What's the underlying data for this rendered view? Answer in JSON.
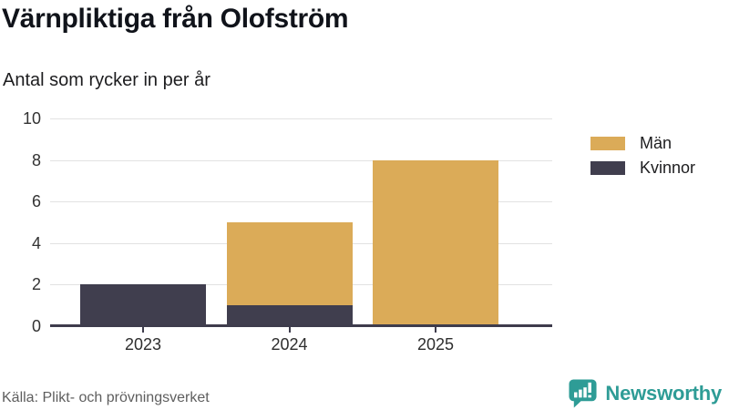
{
  "header": {
    "title": "Värnpliktiga från Olofström",
    "subtitle": "Antal som rycker in per år"
  },
  "chart_data": {
    "type": "bar",
    "stacked": true,
    "title": "Värnpliktiga från Olofström",
    "subtitle": "Antal som rycker in per år",
    "categories": [
      "2023",
      "2024",
      "2025"
    ],
    "series": [
      {
        "name": "Män",
        "color": "#dbab58",
        "values": [
          0,
          4,
          8
        ]
      },
      {
        "name": "Kvinnor",
        "color": "#403e4e",
        "values": [
          2,
          1,
          0
        ]
      }
    ],
    "stack_order_bottom_to_top": [
      "Kvinnor",
      "Män"
    ],
    "ylim": [
      0,
      10
    ],
    "yticks": [
      0,
      2,
      4,
      6,
      8,
      10
    ],
    "xlabel": "",
    "ylabel": "",
    "grid": true,
    "legend_position": "right"
  },
  "footer": {
    "source": "Källa: Plikt- och prövningsverket",
    "brand": "Newsworthy"
  },
  "colors": {
    "men": "#dbab58",
    "women": "#403e4e",
    "brand_teal": "#2e9c96",
    "grid": "#e2e2e2",
    "axis": "#3e3c4c",
    "title_text": "#10131a",
    "muted_text": "#5e5e5e"
  }
}
